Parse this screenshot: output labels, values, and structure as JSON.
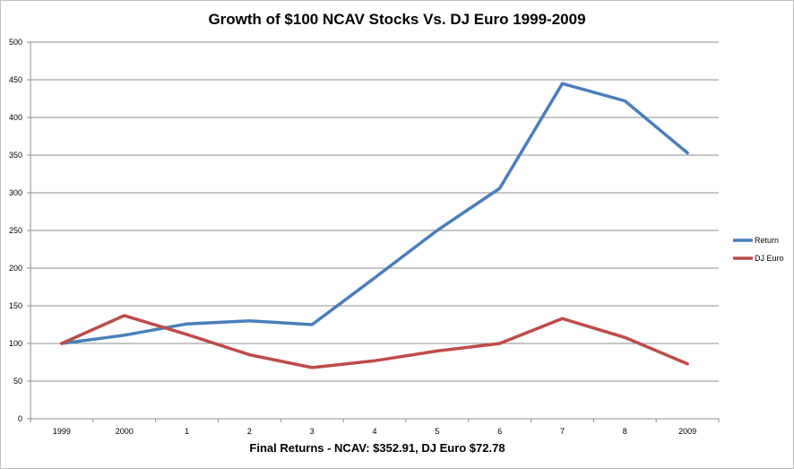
{
  "chart_data": {
    "type": "line",
    "title": "Growth of $100 NCAV Stocks Vs. DJ Euro 1999-2009",
    "xlabel": "Final Returns - NCAV: $352.91, DJ Euro $72.78",
    "ylabel": "",
    "categories": [
      "1999",
      "2000",
      "1",
      "2",
      "3",
      "4",
      "5",
      "6",
      "7",
      "8",
      "2009"
    ],
    "ylim": [
      0,
      500
    ],
    "yticks": [
      0,
      50,
      100,
      150,
      200,
      250,
      300,
      350,
      400,
      450,
      500
    ],
    "grid": true,
    "legend_position": "right",
    "series": [
      {
        "name": "Return",
        "color": "#4a7ebb",
        "values": [
          100,
          111,
          126,
          130,
          125,
          187,
          250,
          306,
          445,
          422,
          353
        ]
      },
      {
        "name": "DJ Euro",
        "color": "#be4b48",
        "values": [
          100,
          137,
          112,
          85,
          68,
          77,
          90,
          100,
          133,
          108,
          73
        ]
      }
    ]
  }
}
